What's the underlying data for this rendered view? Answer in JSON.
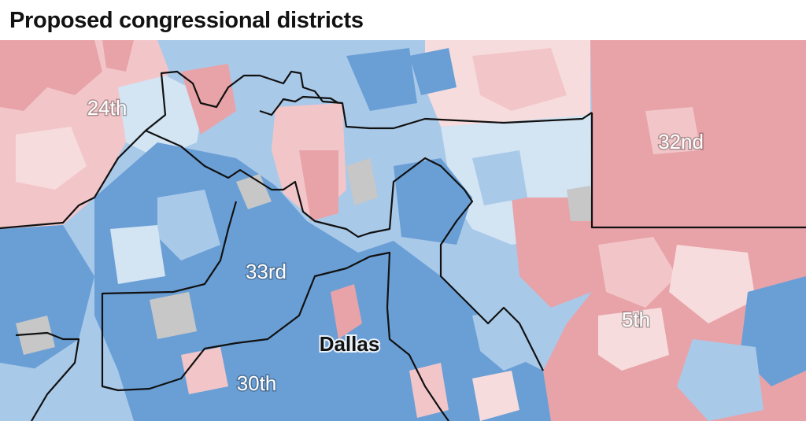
{
  "title": "Proposed congressional districts",
  "map": {
    "district_labels": [
      "24th",
      "32nd",
      "33rd",
      "5th",
      "30th"
    ],
    "city_label": "Dallas",
    "colors": {
      "dem_strong": "#6a9fd6",
      "dem_lean": "#a9c9e9",
      "dem_slight": "#d3e4f3",
      "rep_strong": "#e8a3a8",
      "rep_lean": "#f2c6c9",
      "rep_slight": "#f7dcdd",
      "no_data": "#c7c7c7",
      "boundary": "#111111"
    }
  }
}
